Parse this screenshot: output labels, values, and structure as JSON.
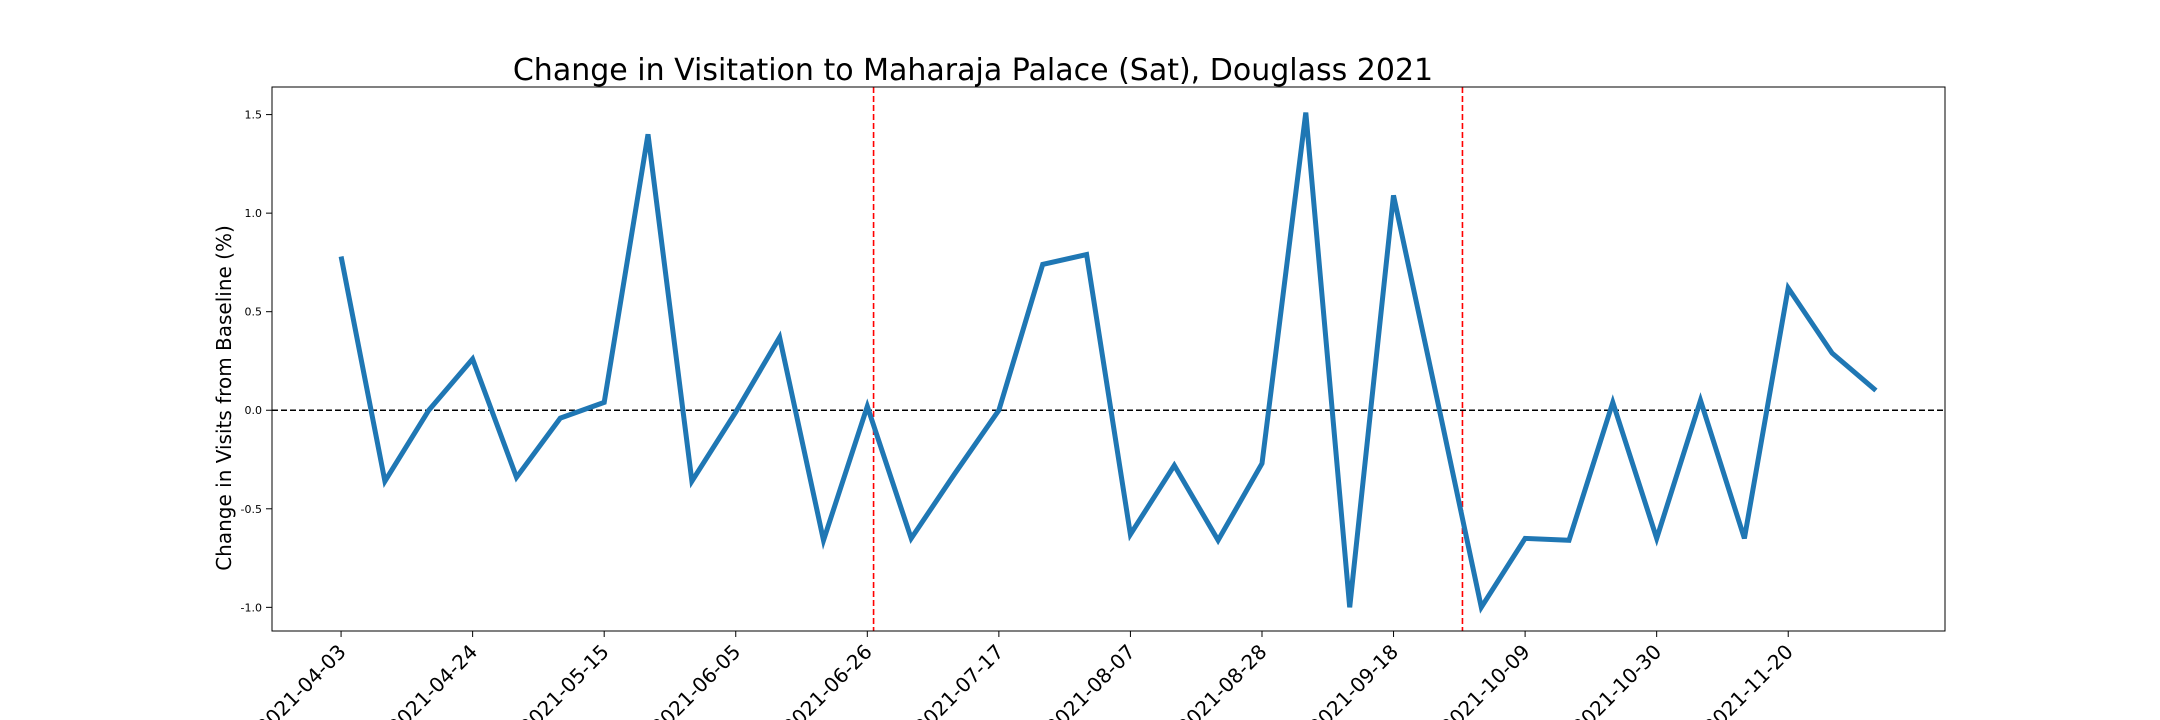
{
  "chart_data": {
    "type": "line",
    "title": "Change in Visitation to Maharaja Palace (Sat), Douglass 2021",
    "xlabel": "",
    "ylabel": "Change in Visits from Baseline (%)",
    "ylim": [
      -1.12,
      1.64
    ],
    "yticks": [
      -1.0,
      -0.5,
      0.0,
      0.5,
      1.0,
      1.5
    ],
    "ytick_labels": [
      "-1.0",
      "-0.5",
      "0.0",
      "0.5",
      "1.0",
      "1.5"
    ],
    "xticks": [
      "2021-04-03",
      "2021-04-24",
      "2021-05-15",
      "2021-06-05",
      "2021-06-26",
      "2021-07-17",
      "2021-08-07",
      "2021-08-28",
      "2021-09-18",
      "2021-10-09",
      "2021-10-30",
      "2021-11-20"
    ],
    "x": [
      "2021-04-03",
      "2021-04-10",
      "2021-04-17",
      "2021-04-24",
      "2021-05-01",
      "2021-05-08",
      "2021-05-15",
      "2021-05-22",
      "2021-05-29",
      "2021-06-05",
      "2021-06-12",
      "2021-06-19",
      "2021-06-26",
      "2021-07-03",
      "2021-07-10",
      "2021-07-17",
      "2021-07-24",
      "2021-07-31",
      "2021-08-07",
      "2021-08-14",
      "2021-08-21",
      "2021-08-28",
      "2021-09-04",
      "2021-09-11",
      "2021-09-18",
      "2021-09-25",
      "2021-10-02",
      "2021-10-09",
      "2021-10-16",
      "2021-10-23",
      "2021-10-30",
      "2021-11-06",
      "2021-11-13",
      "2021-11-20",
      "2021-11-27",
      "2021-12-04"
    ],
    "series": [
      {
        "color": "#1f77b4",
        "values": [
          0.78,
          -0.36,
          0.0,
          0.26,
          -0.34,
          -0.04,
          0.04,
          1.4,
          -0.36,
          -0.01,
          0.37,
          -0.66,
          0.02,
          -0.65,
          -0.32,
          0.0,
          0.74,
          0.79,
          -0.63,
          -0.28,
          -0.66,
          -0.27,
          1.51,
          -1.0,
          1.09,
          0.05,
          -1.0,
          -0.65,
          -0.66,
          0.04,
          -0.65,
          0.05,
          -0.65,
          0.62,
          0.29,
          0.1
        ]
      }
    ],
    "reference_lines": [
      {
        "orientation": "horizontal",
        "value": 0.0,
        "color": "#000000",
        "style": "dashed"
      },
      {
        "orientation": "vertical",
        "value": "2021-06-27",
        "color": "#ff0000",
        "style": "dashed"
      },
      {
        "orientation": "vertical",
        "value": "2021-09-29",
        "color": "#ff0000",
        "style": "dashed"
      }
    ],
    "grid": false,
    "legend": "none"
  }
}
